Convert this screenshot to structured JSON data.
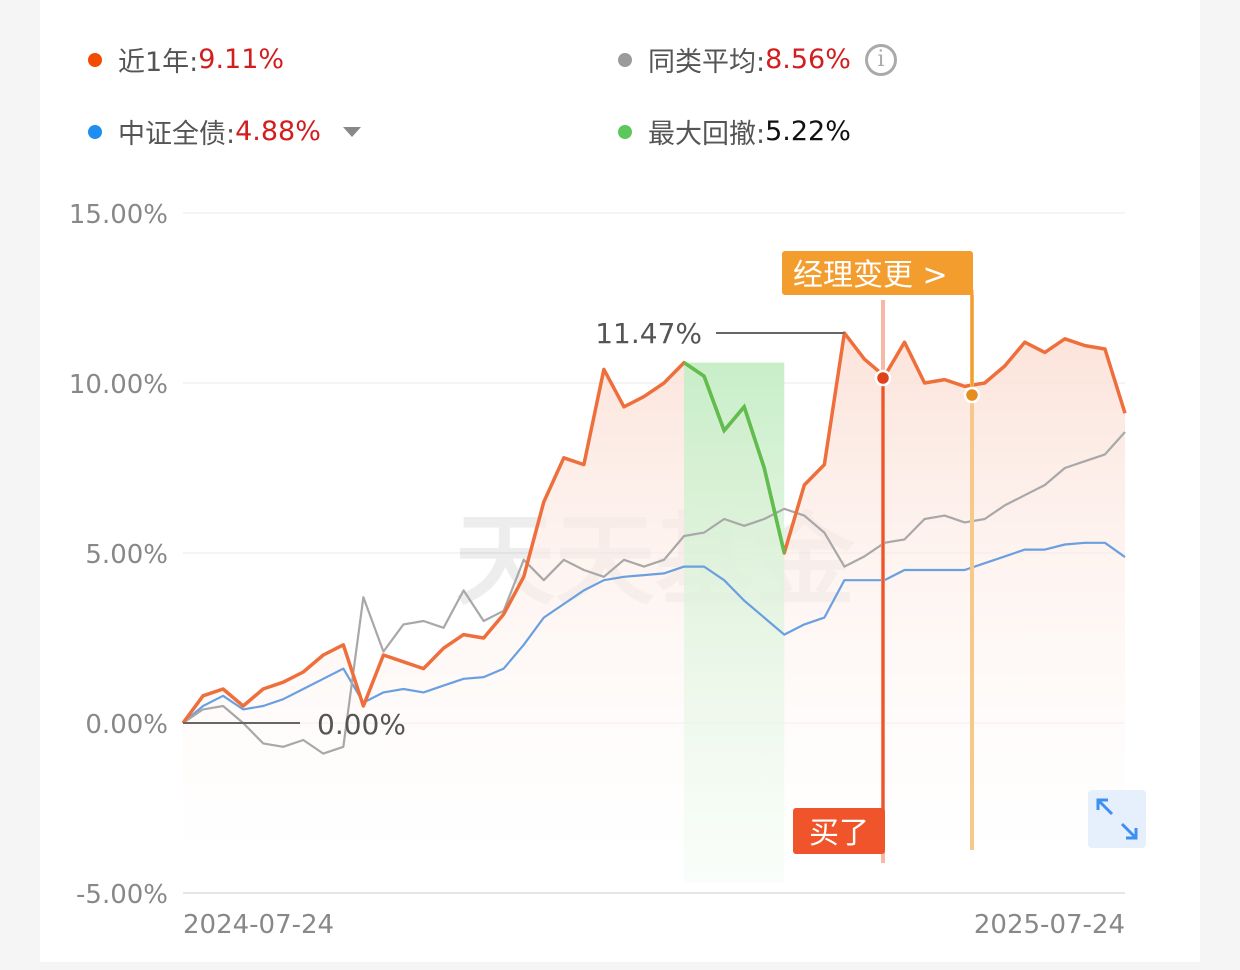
{
  "legend": [
    {
      "label": "近1年:",
      "value": "9.11%",
      "color": "#f24c00"
    },
    {
      "label": "同类平均:",
      "value": "8.56%",
      "color": "#9b9b9b"
    },
    {
      "label": "中证全债:",
      "value": "4.88%",
      "color": "#1f8ef1"
    },
    {
      "label": "最大回撤:",
      "value": "5.22%",
      "color": "#5cc85c"
    }
  ],
  "info_icon": "i",
  "watermark": "天天基金",
  "annotations": {
    "peak_label": "11.47%",
    "start_label": "0.00%",
    "buy_label": "买了",
    "manager_change_label": "经理变更 >"
  },
  "colors": {
    "fund": "#ef6f3c",
    "peer": "#a8a8a8",
    "index": "#6a9fe0",
    "drawdown": "#5cbf4e",
    "buy": "#f0542a",
    "manager": "#f29d2e"
  },
  "chart_data": {
    "type": "line",
    "x_start": "2024-07-24",
    "x_end": "2025-07-24",
    "xticks": [
      "2024-07-24",
      "2025-07-24"
    ],
    "yticks": [
      "15.00%",
      "10.00%",
      "5.00%",
      "0.00%",
      "-5.00%"
    ],
    "ylim": [
      -5,
      15
    ],
    "grid": true,
    "series": [
      {
        "name": "近1年",
        "values": [
          0,
          0.8,
          1.0,
          0.5,
          1.0,
          1.2,
          1.5,
          2.0,
          2.3,
          0.5,
          2.0,
          1.8,
          1.6,
          2.2,
          2.6,
          2.5,
          3.2,
          4.3,
          6.5,
          7.8,
          7.6,
          10.4,
          9.3,
          9.6,
          10.0,
          10.6,
          10.2,
          8.6,
          9.3,
          7.5,
          5.0,
          7.0,
          7.6,
          11.47,
          10.7,
          10.2,
          11.2,
          10.0,
          10.1,
          9.9,
          10.0,
          10.5,
          11.2,
          10.9,
          11.3,
          11.1,
          11.0,
          9.11
        ]
      },
      {
        "name": "同类平均",
        "values": [
          0,
          0.4,
          0.5,
          0,
          -0.6,
          -0.7,
          -0.5,
          -0.9,
          -0.7,
          3.7,
          2.1,
          2.9,
          3.0,
          2.8,
          3.9,
          3.0,
          3.3,
          4.8,
          4.2,
          4.8,
          4.5,
          4.3,
          4.8,
          4.6,
          4.8,
          5.5,
          5.6,
          6.0,
          5.8,
          6.0,
          6.3,
          6.1,
          5.6,
          4.6,
          4.9,
          5.3,
          5.4,
          6.0,
          6.1,
          5.9,
          6.0,
          6.4,
          6.7,
          7.0,
          7.5,
          7.7,
          7.9,
          8.56
        ]
      },
      {
        "name": "中证全债",
        "values": [
          0,
          0.5,
          0.8,
          0.4,
          0.5,
          0.7,
          1.0,
          1.3,
          1.6,
          0.6,
          0.9,
          1.0,
          0.9,
          1.1,
          1.3,
          1.35,
          1.6,
          2.3,
          3.1,
          3.5,
          3.9,
          4.2,
          4.3,
          4.35,
          4.4,
          4.6,
          4.6,
          4.2,
          3.6,
          3.1,
          2.6,
          2.9,
          3.1,
          4.2,
          4.2,
          4.2,
          4.5,
          4.5,
          4.5,
          4.5,
          4.7,
          4.9,
          5.1,
          5.1,
          5.25,
          5.3,
          5.3,
          4.88
        ]
      }
    ],
    "max_drawdown": "5.22%"
  }
}
